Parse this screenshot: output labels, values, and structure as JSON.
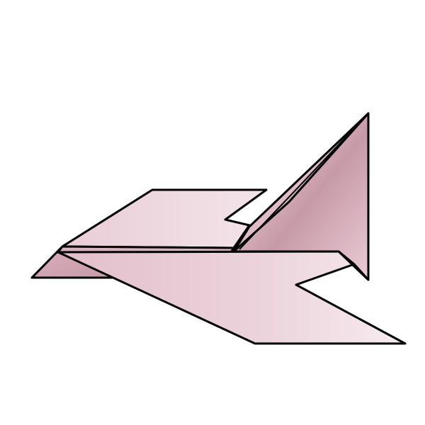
{
  "illustration": {
    "subject": "origami-paper-airplane",
    "colors": {
      "background": "#ffffff",
      "outline": "#000000",
      "paper_light": "#f6e9ee",
      "paper_mid": "#e6c4cf",
      "paper_dark": "#b98a98",
      "paper_shadow": "#c79eab"
    }
  }
}
